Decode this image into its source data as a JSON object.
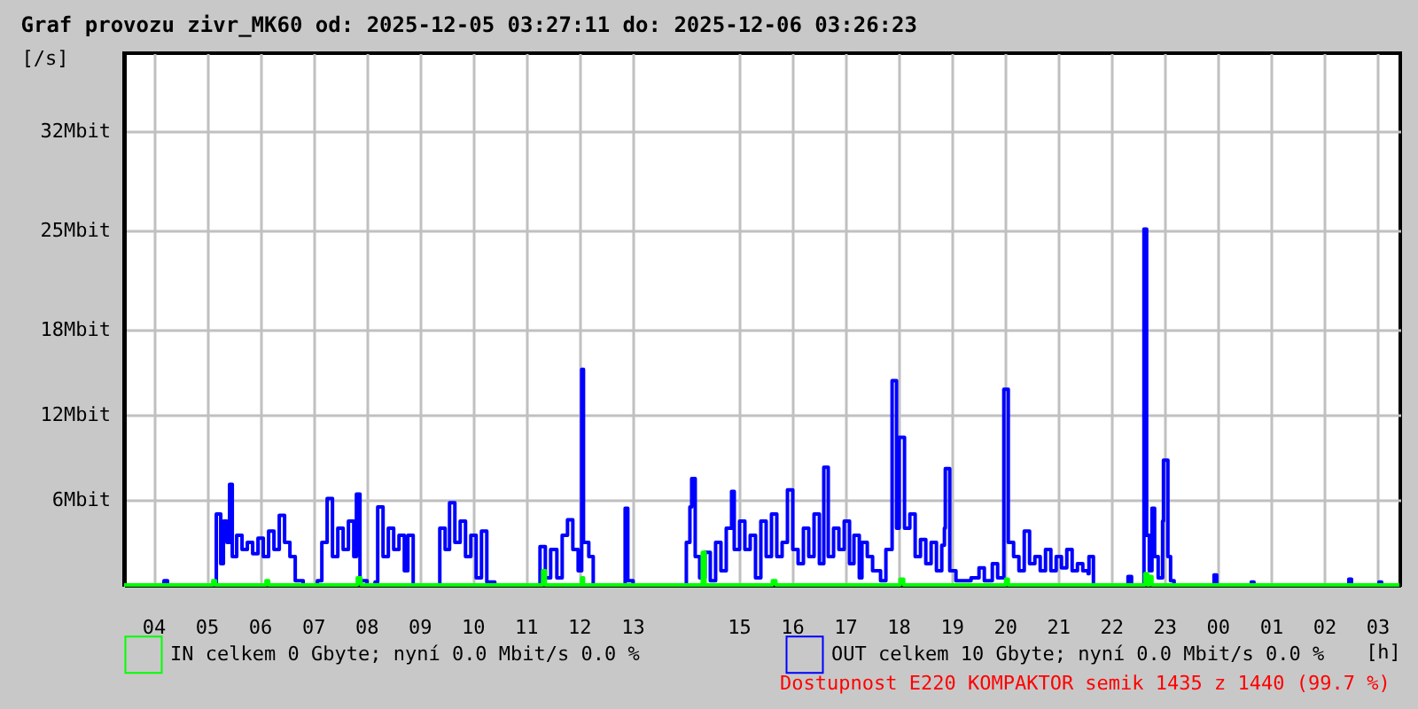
{
  "chart_data": {
    "type": "step",
    "title": "Graf provozu zivr_MK60 od: 2025-12-05 03:27:11 do: 2025-12-06 03:26:23",
    "xlabel": "[h]",
    "ylabel": "[/s]",
    "xlim": [
      "2025-12-05T03:27",
      "2025-12-06T03:26"
    ],
    "ylim": [
      0,
      37.5
    ],
    "xticks": [
      {
        "value": "2025-12-05T04:00",
        "label": "04"
      },
      {
        "value": "2025-12-05T05:00",
        "label": "05"
      },
      {
        "value": "2025-12-05T06:00",
        "label": "06"
      },
      {
        "value": "2025-12-05T07:00",
        "label": "07"
      },
      {
        "value": "2025-12-05T08:00",
        "label": "08"
      },
      {
        "value": "2025-12-05T09:00",
        "label": "09"
      },
      {
        "value": "2025-12-05T10:00",
        "label": "10"
      },
      {
        "value": "2025-12-05T11:00",
        "label": "11"
      },
      {
        "value": "2025-12-05T12:00",
        "label": "12"
      },
      {
        "value": "2025-12-05T13:00",
        "label": "13"
      },
      {
        "value": "2025-12-05T15:00",
        "label": "15"
      },
      {
        "value": "2025-12-05T16:00",
        "label": "16"
      },
      {
        "value": "2025-12-05T17:00",
        "label": "17"
      },
      {
        "value": "2025-12-05T18:00",
        "label": "18"
      },
      {
        "value": "2025-12-05T19:00",
        "label": "19"
      },
      {
        "value": "2025-12-05T20:00",
        "label": "20"
      },
      {
        "value": "2025-12-05T21:00",
        "label": "21"
      },
      {
        "value": "2025-12-05T22:00",
        "label": "22"
      },
      {
        "value": "2025-12-05T23:00",
        "label": "23"
      },
      {
        "value": "2025-12-06T00:00",
        "label": "00"
      },
      {
        "value": "2025-12-06T01:00",
        "label": "01"
      },
      {
        "value": "2025-12-06T02:00",
        "label": "02"
      },
      {
        "value": "2025-12-06T03:00",
        "label": "03"
      }
    ],
    "yticks": [
      {
        "value": 6,
        "label": "6Mbit"
      },
      {
        "value": 12,
        "label": "12Mbit"
      },
      {
        "value": 18,
        "label": "18Mbit"
      },
      {
        "value": 25,
        "label": "25Mbit"
      },
      {
        "value": 32,
        "label": "32Mbit"
      }
    ],
    "grid": true,
    "legend": "bottom",
    "line_style": "solid",
    "marker": "none",
    "annotations": [
      "Dostupnost E220 KOMPAKTOR semik 1435 z 1440 (99.7 %)"
    ],
    "series": [
      {
        "name": "IN celkem 0 Gbyte; nyní    0.0 Mbit/s 0.0 %",
        "color": "#00ff00",
        "x": [
          "2025-12-05T03:27",
          "2025-12-05T05:06",
          "2025-12-05T05:07",
          "2025-12-05T05:10",
          "2025-12-05T06:06",
          "2025-12-05T06:07",
          "2025-12-05T06:10",
          "2025-12-05T07:48",
          "2025-12-05T07:50",
          "2025-12-05T07:54",
          "2025-12-05T11:18",
          "2025-12-05T11:19",
          "2025-12-05T11:22",
          "2025-12-05T12:01",
          "2025-12-05T12:03",
          "2025-12-05T12:05",
          "2025-12-05T14:18",
          "2025-12-05T14:19",
          "2025-12-05T14:22",
          "2025-12-05T15:36",
          "2025-12-05T15:38",
          "2025-12-05T15:42",
          "2025-12-05T18:00",
          "2025-12-05T18:02",
          "2025-12-05T18:06",
          "2025-12-05T20:00",
          "2025-12-05T20:01",
          "2025-12-05T20:04",
          "2025-12-05T22:36",
          "2025-12-05T22:38",
          "2025-12-05T22:41",
          "2025-12-05T22:43",
          "2025-12-05T22:46",
          "2025-12-06T03:25"
        ],
        "values": [
          0,
          0,
          0.3,
          0,
          0,
          0.3,
          0,
          0,
          0.5,
          0,
          0,
          1.0,
          0,
          0,
          0.5,
          0,
          0,
          2.3,
          0,
          0,
          0.3,
          0,
          0,
          0.4,
          0,
          0,
          0.4,
          0,
          0,
          0.8,
          0,
          0.6,
          0,
          0
        ]
      },
      {
        "name": "OUT celkem 10 Gbyte; nyní    0.0 Mbit/s 0.0 %",
        "color": "#0000ff",
        "x": [
          "2025-12-05T03:27",
          "2025-12-05T04:10",
          "2025-12-05T04:12",
          "2025-12-05T04:16",
          "2025-12-05T05:05",
          "2025-12-05T05:11",
          "2025-12-05T05:16",
          "2025-12-05T05:19",
          "2025-12-05T05:23",
          "2025-12-05T05:26",
          "2025-12-05T05:29",
          "2025-12-05T05:34",
          "2025-12-05T05:40",
          "2025-12-05T05:46",
          "2025-12-05T05:52",
          "2025-12-05T05:58",
          "2025-12-05T06:04",
          "2025-12-05T06:10",
          "2025-12-05T06:16",
          "2025-12-05T06:22",
          "2025-12-05T06:28",
          "2025-12-05T06:34",
          "2025-12-05T06:40",
          "2025-12-05T06:49",
          "2025-12-05T07:05",
          "2025-12-05T07:10",
          "2025-12-05T07:16",
          "2025-12-05T07:22",
          "2025-12-05T07:28",
          "2025-12-05T07:34",
          "2025-12-05T07:40",
          "2025-12-05T07:46",
          "2025-12-05T07:49",
          "2025-12-05T07:53",
          "2025-12-05T08:01",
          "2025-12-05T08:10",
          "2025-12-05T08:13",
          "2025-12-05T08:19",
          "2025-12-05T08:25",
          "2025-12-05T08:31",
          "2025-12-05T08:37",
          "2025-12-05T08:43",
          "2025-12-05T08:47",
          "2025-12-05T08:53",
          "2025-12-05T09:19",
          "2025-12-05T09:23",
          "2025-12-05T09:29",
          "2025-12-05T09:34",
          "2025-12-05T09:40",
          "2025-12-05T09:46",
          "2025-12-05T09:52",
          "2025-12-05T09:58",
          "2025-12-05T10:04",
          "2025-12-05T10:10",
          "2025-12-05T10:16",
          "2025-12-05T10:25",
          "2025-12-05T11:10",
          "2025-12-05T11:16",
          "2025-12-05T11:22",
          "2025-12-05T11:28",
          "2025-12-05T11:35",
          "2025-12-05T11:41",
          "2025-12-05T11:47",
          "2025-12-05T11:53",
          "2025-12-05T11:59",
          "2025-12-05T12:03",
          "2025-12-05T12:05",
          "2025-12-05T12:11",
          "2025-12-05T12:16",
          "2025-12-05T12:49",
          "2025-12-05T12:52",
          "2025-12-05T12:55",
          "2025-12-05T13:01",
          "2025-12-05T13:55",
          "2025-12-05T14:01",
          "2025-12-05T14:05",
          "2025-12-05T14:07",
          "2025-12-05T14:11",
          "2025-12-05T14:16",
          "2025-12-05T14:22",
          "2025-12-05T14:28",
          "2025-12-05T14:34",
          "2025-12-05T14:40",
          "2025-12-05T14:46",
          "2025-12-05T14:52",
          "2025-12-05T14:55",
          "2025-12-05T15:01",
          "2025-12-05T15:07",
          "2025-12-05T15:13",
          "2025-12-05T15:19",
          "2025-12-05T15:25",
          "2025-12-05T15:31",
          "2025-12-05T15:37",
          "2025-12-05T15:43",
          "2025-12-05T15:49",
          "2025-12-05T15:55",
          "2025-12-05T16:01",
          "2025-12-05T16:07",
          "2025-12-05T16:13",
          "2025-12-05T16:19",
          "2025-12-05T16:25",
          "2025-12-05T16:31",
          "2025-12-05T16:36",
          "2025-12-05T16:41",
          "2025-12-05T16:47",
          "2025-12-05T16:53",
          "2025-12-05T16:59",
          "2025-12-05T17:05",
          "2025-12-05T17:10",
          "2025-12-05T17:16",
          "2025-12-05T17:19",
          "2025-12-05T17:25",
          "2025-12-05T17:31",
          "2025-12-05T17:40",
          "2025-12-05T17:46",
          "2025-12-05T17:53",
          "2025-12-05T17:58",
          "2025-12-05T18:01",
          "2025-12-05T18:07",
          "2025-12-05T18:13",
          "2025-12-05T18:19",
          "2025-12-05T18:25",
          "2025-12-05T18:31",
          "2025-12-05T18:37",
          "2025-12-05T18:43",
          "2025-12-05T18:49",
          "2025-12-05T18:52",
          "2025-12-05T18:53",
          "2025-12-05T18:58",
          "2025-12-05T19:05",
          "2025-12-05T19:22",
          "2025-12-05T19:31",
          "2025-12-05T19:37",
          "2025-12-05T19:46",
          "2025-12-05T19:52",
          "2025-12-05T19:59",
          "2025-12-05T20:04",
          "2025-12-05T20:10",
          "2025-12-05T20:16",
          "2025-12-05T20:22",
          "2025-12-05T20:28",
          "2025-12-05T20:34",
          "2025-12-05T20:40",
          "2025-12-05T20:46",
          "2025-12-05T20:52",
          "2025-12-05T20:58",
          "2025-12-05T21:04",
          "2025-12-05T21:10",
          "2025-12-05T21:16",
          "2025-12-05T21:22",
          "2025-12-05T21:28",
          "2025-12-05T21:34",
          "2025-12-05T21:35",
          "2025-12-05T21:40",
          "2025-12-05T22:16",
          "2025-12-05T22:19",
          "2025-12-05T22:23",
          "2025-12-05T22:34",
          "2025-12-05T22:37",
          "2025-12-05T22:40",
          "2025-12-05T22:43",
          "2025-12-05T22:46",
          "2025-12-05T22:49",
          "2025-12-05T22:53",
          "2025-12-05T22:58",
          "2025-12-05T22:59",
          "2025-12-05T23:04",
          "2025-12-05T23:07",
          "2025-12-05T23:11",
          "2025-12-05T23:55",
          "2025-12-05T23:56",
          "2025-12-05T23:59",
          "2025-12-06T00:37",
          "2025-12-06T00:38",
          "2025-12-06T00:41",
          "2025-12-06T02:25",
          "2025-12-06T02:28",
          "2025-12-06T02:31",
          "2025-12-06T03:01",
          "2025-12-06T03:02",
          "2025-12-06T03:05",
          "2025-12-06T03:25"
        ],
        "values": [
          0,
          0,
          0.3,
          0,
          0,
          5.0,
          1.5,
          4.5,
          3,
          7.1,
          2,
          3.5,
          2.5,
          3,
          2.2,
          3.3,
          2,
          3.8,
          2.5,
          4.9,
          3,
          2,
          0.3,
          0,
          0.3,
          3,
          6.1,
          2,
          4,
          2.5,
          4.5,
          2,
          6.4,
          0.3,
          0,
          0.2,
          5.5,
          2,
          4,
          2.5,
          3.5,
          1,
          3.5,
          0,
          0,
          4,
          2.5,
          5.8,
          3,
          4.5,
          2,
          3.5,
          0.5,
          3.8,
          0.2,
          0,
          0,
          2.7,
          0.5,
          2.5,
          0.5,
          3.5,
          4.6,
          2.5,
          1,
          15.2,
          3,
          2,
          0,
          0,
          5.4,
          0.3,
          0,
          0,
          3,
          5.5,
          7.5,
          2,
          0.5,
          2.3,
          0.3,
          3,
          1,
          4,
          6.6,
          2.5,
          4.5,
          2.5,
          3.5,
          0.5,
          4.5,
          2,
          5,
          2,
          3,
          6.7,
          2.5,
          1.5,
          4,
          2,
          5,
          1.5,
          8.3,
          2,
          4,
          2.5,
          4.5,
          1.5,
          3.5,
          0.5,
          3,
          2,
          1,
          0.3,
          2.5,
          14.4,
          4,
          10.4,
          4,
          5,
          2,
          3.2,
          1.5,
          3,
          1,
          2.8,
          4,
          8.2,
          1,
          0.3,
          0.5,
          1.2,
          0.3,
          1.5,
          0.5,
          13.8,
          3,
          2,
          1,
          3.8,
          1.5,
          2,
          1,
          2.5,
          1,
          2,
          1.2,
          2.5,
          1,
          1.5,
          1,
          0.8,
          2,
          0,
          0,
          0.6,
          0,
          0,
          25.1,
          3.5,
          1,
          5.4,
          2,
          0.5,
          4.5,
          8.8,
          2,
          0.3,
          0,
          0,
          0.7,
          0,
          0,
          0.2,
          0,
          0,
          0.4,
          0,
          0,
          0.2,
          0,
          0
        ]
      }
    ]
  }
}
